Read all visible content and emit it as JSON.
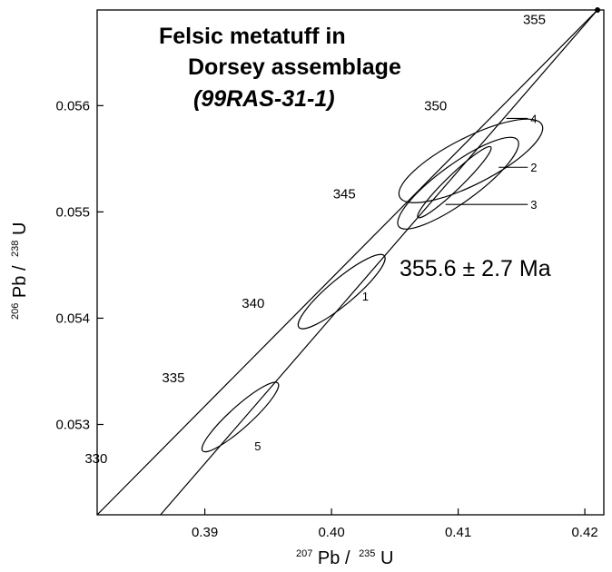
{
  "chart_data": {
    "type": "scatter",
    "subtype": "U-Pb concordia diagram",
    "title_lines": [
      "Felsic metatuff in",
      "Dorsey assemblage",
      "(99RAS-31-1)"
    ],
    "result_label": "355.6 ± 2.7 Ma",
    "xlabel": {
      "sup1": "207",
      "main1": "Pb /",
      "sup2": "235",
      "main2": "U"
    },
    "ylabel": {
      "sup1": "206",
      "main1": "Pb /",
      "sup2": "238",
      "main2": "U"
    },
    "xlim": [
      0.3815,
      0.4215
    ],
    "ylim": [
      0.05215,
      0.0569
    ],
    "x_ticks": [
      {
        "value": 0.39,
        "label": "0.39"
      },
      {
        "value": 0.4,
        "label": "0.40"
      },
      {
        "value": 0.41,
        "label": "0.41"
      },
      {
        "value": 0.42,
        "label": "0.42"
      }
    ],
    "y_ticks": [
      {
        "value": 0.053,
        "label": "0.053"
      },
      {
        "value": 0.054,
        "label": "0.054"
      },
      {
        "value": 0.055,
        "label": "0.055"
      },
      {
        "value": 0.056,
        "label": "0.056"
      }
    ],
    "grid": false,
    "concordia_band": {
      "upper": [
        [
          0.3815,
          0.05215
        ],
        [
          0.421,
          0.0569
        ]
      ],
      "lower": [
        [
          0.3865,
          0.05215
        ],
        [
          0.421,
          0.0569
        ]
      ]
    },
    "age_markers": [
      {
        "label": "330",
        "x": 0.3826,
        "y": 0.05262
      },
      {
        "label": "335",
        "x": 0.3887,
        "y": 0.05338
      },
      {
        "label": "340",
        "x": 0.395,
        "y": 0.05408
      },
      {
        "label": "345",
        "x": 0.4022,
        "y": 0.05511
      },
      {
        "label": "350",
        "x": 0.4094,
        "y": 0.05594
      },
      {
        "label": "355",
        "x": 0.4172,
        "y": 0.05675
      }
    ],
    "ellipses": [
      {
        "label": "1",
        "cx": 0.4008,
        "cy": 0.05425,
        "rx": 0.0044,
        "ry": 0.00012,
        "angle_deg": -40,
        "label_x": 0.4022,
        "label_y": 0.05421
      },
      {
        "label": "2",
        "cx": 0.411,
        "cy": 0.05548,
        "rx": 0.0063,
        "ry": 0.00022,
        "angle_deg": -27,
        "label_x": 0.4155,
        "label_y": 0.05542
      },
      {
        "label": "3",
        "cx": 0.4097,
        "cy": 0.05528,
        "rx": 0.004,
        "ry": 7e-05,
        "angle_deg": -44,
        "label_x": 0.4155,
        "label_y": 0.05507
      },
      {
        "label": "4",
        "cx": 0.41,
        "cy": 0.05527,
        "rx": 0.0058,
        "ry": 0.00018,
        "angle_deg": -36,
        "label_x": 0.4155,
        "label_y": 0.05588
      },
      {
        "label": "5",
        "cx": 0.3928,
        "cy": 0.05307,
        "rx": 0.004,
        "ry": 0.0001,
        "angle_deg": -42,
        "label_x": 0.3937,
        "label_y": 0.0528
      }
    ]
  }
}
